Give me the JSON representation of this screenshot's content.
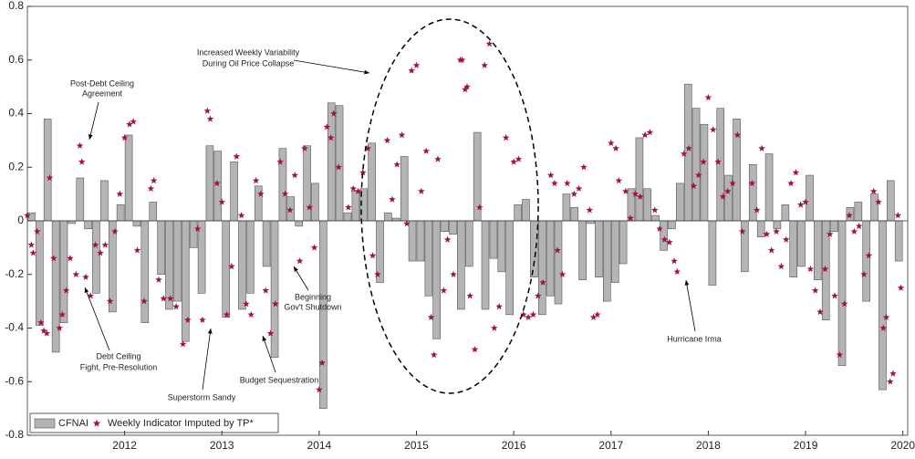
{
  "chart_data": {
    "type": "bar",
    "xlim": [
      2011,
      2020.05
    ],
    "ylim": [
      -0.8,
      0.8
    ],
    "xticks": [
      2012,
      2013,
      2014,
      2015,
      2016,
      2017,
      2018,
      2019,
      2020
    ],
    "yticks": [
      -0.8,
      -0.6,
      -0.4,
      -0.2,
      0,
      0.2,
      0.4,
      0.6,
      0.8
    ],
    "series": [
      {
        "name": "CFNAI",
        "type": "bar",
        "color": "#b4b4b4",
        "x": [
          2011.042,
          2011.125,
          2011.208,
          2011.292,
          2011.375,
          2011.458,
          2011.542,
          2011.625,
          2011.708,
          2011.792,
          2011.875,
          2011.958,
          2012.042,
          2012.125,
          2012.208,
          2012.292,
          2012.375,
          2012.458,
          2012.542,
          2012.625,
          2012.708,
          2012.792,
          2012.875,
          2012.958,
          2013.042,
          2013.125,
          2013.208,
          2013.292,
          2013.375,
          2013.458,
          2013.542,
          2013.625,
          2013.708,
          2013.792,
          2013.875,
          2013.958,
          2014.042,
          2014.125,
          2014.208,
          2014.292,
          2014.375,
          2014.458,
          2014.542,
          2014.625,
          2014.708,
          2014.792,
          2014.875,
          2014.958,
          2015.042,
          2015.125,
          2015.208,
          2015.292,
          2015.375,
          2015.458,
          2015.542,
          2015.625,
          2015.708,
          2015.792,
          2015.875,
          2015.958,
          2016.042,
          2016.125,
          2016.208,
          2016.292,
          2016.375,
          2016.458,
          2016.542,
          2016.625,
          2016.708,
          2016.792,
          2016.875,
          2016.958,
          2017.042,
          2017.125,
          2017.208,
          2017.292,
          2017.375,
          2017.458,
          2017.542,
          2017.625,
          2017.708,
          2017.792,
          2017.875,
          2017.958,
          2018.042,
          2018.125,
          2018.208,
          2018.292,
          2018.375,
          2018.458,
          2018.542,
          2018.625,
          2018.708,
          2018.792,
          2018.875,
          2018.958,
          2019.042,
          2019.125,
          2019.208,
          2019.292,
          2019.375,
          2019.458,
          2019.542,
          2019.625,
          2019.708,
          2019.792,
          2019.875,
          2019.958
        ],
        "values": [
          0.03,
          -0.39,
          0.38,
          -0.49,
          -0.38,
          -0.01,
          0.16,
          -0.03,
          -0.27,
          0.15,
          -0.34,
          0.06,
          0.32,
          -0.02,
          -0.38,
          0.07,
          -0.2,
          -0.33,
          -0.3,
          -0.45,
          -0.1,
          -0.27,
          0.28,
          0.26,
          -0.36,
          0.22,
          -0.33,
          -0.27,
          0.13,
          -0.17,
          -0.51,
          0.27,
          0.09,
          -0.02,
          0.28,
          0.14,
          -0.7,
          0.44,
          0.43,
          0.03,
          0.11,
          0.12,
          0.29,
          -0.23,
          0.03,
          0.01,
          0.24,
          -0.15,
          -0.15,
          -0.28,
          -0.44,
          -0.04,
          -0.05,
          -0.33,
          -0.17,
          0.33,
          -0.33,
          -0.14,
          -0.19,
          -0.35,
          0.06,
          0.08,
          -0.21,
          -0.35,
          -0.28,
          -0.31,
          0.1,
          0.05,
          -0.22,
          -0.01,
          -0.21,
          -0.3,
          -0.23,
          -0.16,
          0.12,
          0.31,
          0.12,
          0.02,
          -0.11,
          -0.03,
          0.14,
          0.51,
          0.42,
          0.36,
          -0.24,
          0.42,
          0.17,
          0.38,
          -0.19,
          0.21,
          -0.06,
          0.25,
          -0.03,
          0.06,
          -0.21,
          -0.17,
          0.17,
          -0.22,
          -0.37,
          -0.04,
          -0.54,
          0.05,
          0.07,
          -0.3,
          0.1,
          -0.63,
          0.15,
          -0.15
        ]
      },
      {
        "name": "Weekly Indicator Imputed by TP*",
        "type": "scatter",
        "color": "#a3123d",
        "x": [
          2011.0,
          2011.04,
          2011.06,
          2011.1,
          2011.14,
          2011.17,
          2011.2,
          2011.23,
          2011.27,
          2011.33,
          2011.36,
          2011.4,
          2011.44,
          2011.5,
          2011.54,
          2011.56,
          2011.6,
          2011.65,
          2011.7,
          2011.75,
          2011.8,
          2011.85,
          2011.9,
          2011.95,
          2012.0,
          2012.05,
          2012.09,
          2012.13,
          2012.2,
          2012.27,
          2012.3,
          2012.35,
          2012.4,
          2012.47,
          2012.53,
          2012.6,
          2012.65,
          2012.75,
          2012.8,
          2012.85,
          2012.88,
          2012.95,
          2013.0,
          2013.05,
          2013.1,
          2013.15,
          2013.2,
          2013.25,
          2013.3,
          2013.35,
          2013.4,
          2013.45,
          2013.5,
          2013.55,
          2013.6,
          2013.65,
          2013.7,
          2013.75,
          2013.8,
          2013.85,
          2013.9,
          2013.95,
          2014.0,
          2014.03,
          2014.08,
          2014.12,
          2014.15,
          2014.2,
          2014.3,
          2014.35,
          2014.4,
          2014.45,
          2014.5,
          2014.55,
          2014.6,
          2014.7,
          2014.75,
          2014.8,
          2014.85,
          2014.9,
          2014.95,
          2015.0,
          2015.05,
          2015.1,
          2015.15,
          2015.18,
          2015.22,
          2015.28,
          2015.32,
          2015.38,
          2015.45,
          2015.47,
          2015.5,
          2015.52,
          2015.55,
          2015.6,
          2015.65,
          2015.7,
          2015.75,
          2015.8,
          2015.85,
          2015.92,
          2016.0,
          2016.05,
          2016.1,
          2016.15,
          2016.2,
          2016.25,
          2016.3,
          2016.38,
          2016.42,
          2016.45,
          2016.5,
          2016.55,
          2016.62,
          2016.67,
          2016.72,
          2016.78,
          2016.82,
          2016.86,
          2017.0,
          2017.05,
          2017.08,
          2017.15,
          2017.2,
          2017.25,
          2017.3,
          2017.35,
          2017.4,
          2017.45,
          2017.5,
          2017.55,
          2017.6,
          2017.65,
          2017.68,
          2017.75,
          2017.8,
          2017.85,
          2017.9,
          2017.95,
          2018.0,
          2018.05,
          2018.1,
          2018.15,
          2018.2,
          2018.25,
          2018.3,
          2018.35,
          2018.45,
          2018.5,
          2018.55,
          2018.6,
          2018.65,
          2018.7,
          2018.75,
          2018.8,
          2018.85,
          2018.9,
          2018.95,
          2019.0,
          2019.05,
          2019.1,
          2019.15,
          2019.2,
          2019.25,
          2019.3,
          2019.35,
          2019.4,
          2019.45,
          2019.5,
          2019.55,
          2019.6,
          2019.65,
          2019.7,
          2019.75,
          2019.8,
          2019.83,
          2019.87,
          2019.9,
          2019.95,
          2019.98
        ],
        "values": [
          0.02,
          -0.09,
          -0.12,
          -0.04,
          -0.38,
          -0.41,
          -0.42,
          0.16,
          -0.14,
          -0.4,
          -0.35,
          -0.26,
          -0.14,
          -0.2,
          0.28,
          0.22,
          -0.21,
          -0.28,
          -0.09,
          -0.12,
          -0.09,
          -0.3,
          -0.04,
          0.1,
          0.31,
          0.36,
          0.37,
          -0.11,
          -0.3,
          0.12,
          0.15,
          -0.22,
          -0.29,
          -0.29,
          -0.32,
          -0.46,
          -0.37,
          -0.03,
          -0.37,
          0.41,
          0.38,
          0.14,
          0.07,
          -0.35,
          -0.17,
          0.24,
          0.02,
          -0.31,
          -0.35,
          0.15,
          0.1,
          -0.26,
          -0.42,
          -0.31,
          0.22,
          0.1,
          0.04,
          0.17,
          -0.15,
          0.27,
          0.05,
          -0.1,
          -0.63,
          -0.53,
          0.35,
          0.31,
          0.4,
          0.2,
          0.05,
          0.12,
          0.11,
          0.18,
          0.27,
          -0.13,
          -0.2,
          0.3,
          0.08,
          0.21,
          0.32,
          -0.01,
          0.56,
          0.58,
          0.11,
          0.26,
          -0.36,
          -0.5,
          0.23,
          -0.26,
          -0.07,
          -0.2,
          0.6,
          0.6,
          0.49,
          0.5,
          -0.28,
          -0.48,
          0.05,
          0.58,
          0.66,
          -0.4,
          -0.32,
          0.31,
          0.22,
          0.23,
          -0.35,
          -0.36,
          -0.35,
          -0.28,
          -0.23,
          0.17,
          0.14,
          -0.11,
          -0.2,
          0.14,
          0.1,
          0.12,
          0.2,
          0.04,
          -0.36,
          -0.35,
          0.29,
          0.27,
          0.15,
          0.11,
          0.01,
          0.1,
          0.09,
          0.32,
          0.33,
          0.04,
          -0.03,
          -0.07,
          -0.08,
          -0.15,
          -0.19,
          0.25,
          0.27,
          0.13,
          0.17,
          0.22,
          0.46,
          0.34,
          0.22,
          0.09,
          0.11,
          0.14,
          0.32,
          -0.04,
          0.14,
          0.04,
          0.27,
          -0.05,
          -0.11,
          -0.04,
          -0.17,
          -0.07,
          0.14,
          0.18,
          0.06,
          0.07,
          -0.18,
          -0.26,
          -0.34,
          -0.18,
          -0.05,
          -0.28,
          -0.5,
          -0.31,
          0.02,
          -0.04,
          -0.02,
          -0.2,
          -0.13,
          0.11,
          0.07,
          -0.4,
          -0.36,
          -0.6,
          -0.57,
          0.02,
          -0.25
        ]
      }
    ],
    "annotations": [
      {
        "text": [
          "Post-Debt Ceiling",
          "Agreement"
        ]
      },
      {
        "text": [
          "Increased Weekly Variability",
          "During Oil Price Collapse"
        ]
      },
      {
        "text": [
          "Debt Ceiling",
          "Fight, Pre-Resolution"
        ]
      },
      {
        "text": [
          "Superstorm Sandy"
        ]
      },
      {
        "text": [
          "Budget Sequestration"
        ]
      },
      {
        "text": [
          "Beginning",
          "Gov't Shutdown"
        ]
      },
      {
        "text": [
          "Hurricane Irma"
        ]
      }
    ]
  }
}
